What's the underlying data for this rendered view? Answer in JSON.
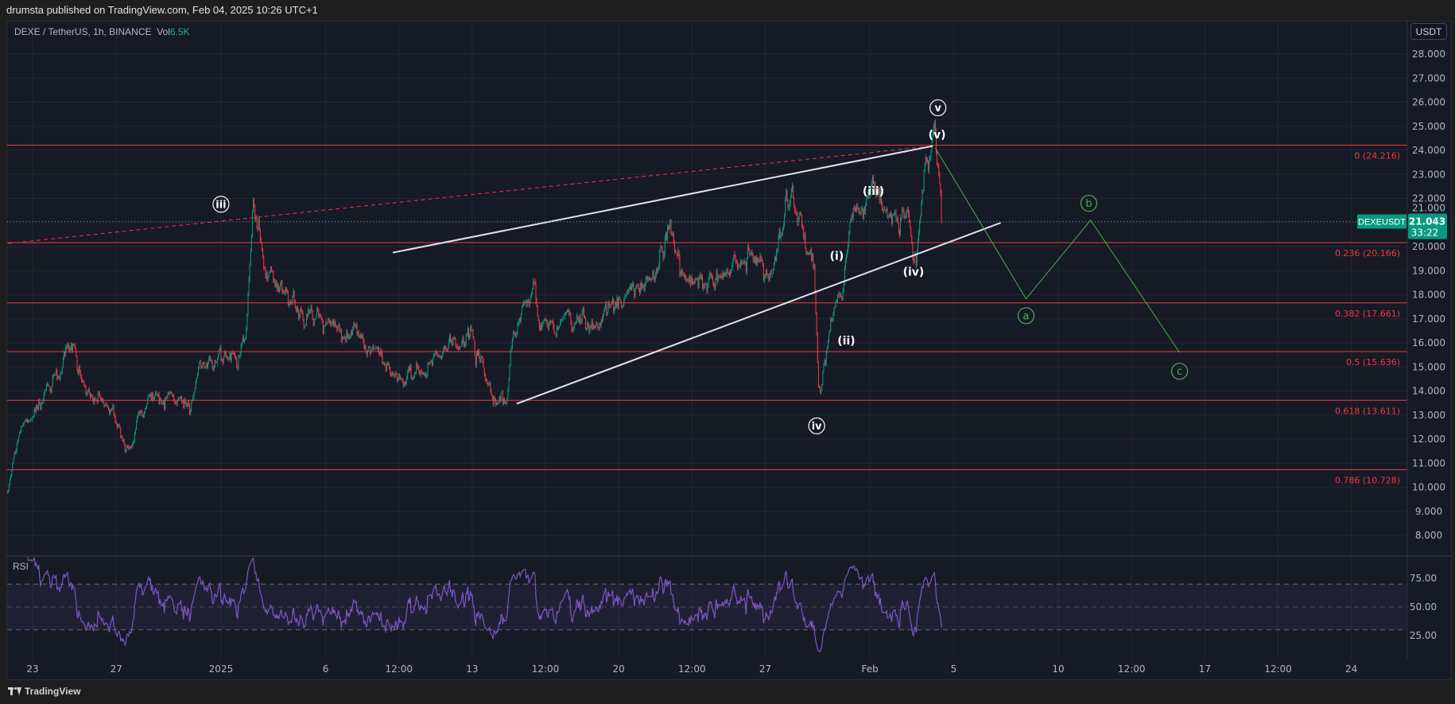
{
  "header": {
    "title": "drumsta published on TradingView.com, Feb 04, 2025 10:26 UTC+1"
  },
  "legend": {
    "symbol": "DEXE / TetherUS, 1h, BINANCE",
    "vol_label": "Vol",
    "vol_value": "6.5K"
  },
  "currency_button": "USDT",
  "rsi_label": "RSI",
  "footer": {
    "logo_text": "TradingView"
  },
  "colors": {
    "up": "#089981",
    "down": "#f23645",
    "fib": "#f23645",
    "rsi": "#7e57c2",
    "wave_green": "#4caf50",
    "price_badge": "#089981"
  },
  "chart_data": {
    "type": "candlestick",
    "symbol": "DEXEUSDT",
    "interval": "1h",
    "last_price": "21.043",
    "countdown": "33:22",
    "price_ticks": [
      "28.000",
      "27.000",
      "26.000",
      "25.000",
      "24.000",
      "23.000",
      "22.000",
      "21.000",
      "20.000",
      "19.000",
      "18.000",
      "17.000",
      "16.000",
      "15.000",
      "14.000",
      "13.000",
      "12.000",
      "11.000",
      "10.000",
      "9.000",
      "8.000"
    ],
    "ylim": [
      8,
      28
    ],
    "time_ticks": [
      {
        "label": "23",
        "t": "2024-12-23T00:00"
      },
      {
        "label": "27",
        "t": "2024-12-27T00:00"
      },
      {
        "label": "2025",
        "t": "2025-01-01T00:00"
      },
      {
        "label": "6",
        "t": "2025-01-06T00:00"
      },
      {
        "label": "12:00",
        "t": "2025-01-09T12:00"
      },
      {
        "label": "13",
        "t": "2025-01-13T00:00"
      },
      {
        "label": "12:00",
        "t": "2025-01-16T12:00"
      },
      {
        "label": "20",
        "t": "2025-01-20T00:00"
      },
      {
        "label": "12:00",
        "t": "2025-01-23T12:00"
      },
      {
        "label": "27",
        "t": "2025-01-27T00:00"
      },
      {
        "label": "Feb",
        "t": "2025-02-01T00:00"
      },
      {
        "label": "5",
        "t": "2025-02-05T00:00"
      },
      {
        "label": "10",
        "t": "2025-02-10T00:00"
      },
      {
        "label": "12:00",
        "t": "2025-02-13T12:00"
      },
      {
        "label": "17",
        "t": "2025-02-17T00:00"
      },
      {
        "label": "12:00",
        "t": "2025-02-20T12:00"
      },
      {
        "label": "24",
        "t": "2025-02-24T00:00"
      }
    ],
    "price_path": [
      [
        "2024-12-21T19:00",
        9.8
      ],
      [
        "2024-12-22T08:00",
        12.1
      ],
      [
        "2024-12-23T16:00",
        14.0
      ],
      [
        "2024-12-25T00:00",
        15.6
      ],
      [
        "2024-12-25T16:00",
        13.7
      ],
      [
        "2024-12-26T19:00",
        13.3
      ],
      [
        "2024-12-27T11:00",
        11.4
      ],
      [
        "2024-12-28T13:00",
        13.7
      ],
      [
        "2024-12-29T16:00",
        13.7
      ],
      [
        "2024-12-30T13:00",
        13.1
      ],
      [
        "2024-12-31T00:00",
        15.2
      ],
      [
        "2025-01-01T19:00",
        15.2
      ],
      [
        "2025-01-02T05:00",
        16.4
      ],
      [
        "2025-01-02T13:00",
        21.8
      ],
      [
        "2025-01-03T03:00",
        19.1
      ],
      [
        "2025-01-04T05:00",
        17.5
      ],
      [
        "2025-01-06T00:00",
        17.1
      ],
      [
        "2025-01-07T08:00",
        16.0
      ],
      [
        "2025-01-08T16:00",
        15.6
      ],
      [
        "2025-01-09T03:00",
        14.6
      ],
      [
        "2025-01-10T11:00",
        14.8
      ],
      [
        "2025-01-11T19:00",
        16.0
      ],
      [
        "2025-01-12T21:00",
        16.4
      ],
      [
        "2025-01-13T13:00",
        14.8
      ],
      [
        "2025-01-14T00:00",
        13.6
      ],
      [
        "2025-01-14T16:00",
        13.9
      ],
      [
        "2025-01-14T21:00",
        16.0
      ],
      [
        "2025-01-16T00:00",
        18.1
      ],
      [
        "2025-01-16T05:00",
        16.7
      ],
      [
        "2025-01-17T13:00",
        16.9
      ],
      [
        "2025-01-18T21:00",
        16.7
      ],
      [
        "2025-01-20T00:00",
        17.5
      ],
      [
        "2025-01-20T16:00",
        18.7
      ],
      [
        "2025-01-21T13:00",
        18.7
      ],
      [
        "2025-01-22T11:00",
        21.2
      ],
      [
        "2025-01-23T08:00",
        18.3
      ],
      [
        "2025-01-25T03:00",
        18.9
      ],
      [
        "2025-01-26T00:00",
        19.6
      ],
      [
        "2025-01-27T08:00",
        18.9
      ],
      [
        "2025-01-28T00:00",
        21.8
      ],
      [
        "2025-01-28T16:00",
        20.6
      ],
      [
        "2025-01-29T08:00",
        19.1
      ],
      [
        "2025-01-29T13:00",
        14.0
      ],
      [
        "2025-01-29T15:00",
        13.7
      ],
      [
        "2025-01-30T05:00",
        17.3
      ],
      [
        "2025-01-30T16:00",
        18.3
      ],
      [
        "2025-01-31T03:00",
        21.0
      ],
      [
        "2025-02-01T05:00",
        22.1
      ],
      [
        "2025-02-01T21:00",
        21.0
      ],
      [
        "2025-02-02T19:00",
        21.0
      ],
      [
        "2025-02-03T05:00",
        19.3
      ],
      [
        "2025-02-03T16:00",
        23.3
      ],
      [
        "2025-02-04T03:00",
        24.1
      ],
      [
        "2025-02-04T10:00",
        21.043
      ]
    ],
    "fib_levels": [
      {
        "label": "0 (24.216)",
        "price": 24.216
      },
      {
        "label": "0.236 (20.166)",
        "price": 20.166
      },
      {
        "label": "0.382 (17.661)",
        "price": 17.661
      },
      {
        "label": "0.5 (15.636)",
        "price": 15.636
      },
      {
        "label": "0.618 (13.611)",
        "price": 13.611
      },
      {
        "label": "0.786 (10.728)",
        "price": 10.728
      }
    ],
    "trendlines": [
      {
        "name": "dashed-resistance",
        "style": "dashed",
        "color": "#f23645",
        "from": [
          "2024-12-21T12:00",
          20.1
        ],
        "to": [
          "2025-02-04T00:00",
          24.18
        ]
      },
      {
        "name": "channel-upper",
        "style": "solid",
        "color": "#e0e3eb",
        "from": [
          "2025-01-09T05:00",
          19.75
        ],
        "to": [
          "2025-02-04T00:00",
          24.18
        ]
      },
      {
        "name": "channel-lower",
        "style": "solid",
        "color": "#e0e3eb",
        "from": [
          "2025-01-15T03:00",
          13.47
        ],
        "to": [
          "2025-02-07T06:00",
          20.99
        ]
      }
    ],
    "projection_path": [
      [
        "2025-02-04T03:00",
        24.1
      ],
      [
        "2025-02-08T11:00",
        17.83
      ],
      [
        "2025-02-11T13:00",
        21.1
      ],
      [
        "2025-02-15T19:00",
        15.6
      ]
    ],
    "wave_labels": [
      {
        "text": "iii",
        "circled": true,
        "color": "#ffffff",
        "t": "2025-01-01T00:00",
        "price": 21.76
      },
      {
        "text": "v",
        "circled": true,
        "color": "#ffffff",
        "t": "2025-02-04T06:00",
        "price": 25.77
      },
      {
        "text": "(v)",
        "circled": false,
        "color": "#ffffff",
        "t": "2025-02-04T05:00",
        "price": 24.65
      },
      {
        "text": "(iii)",
        "circled": false,
        "color": "#ffffff",
        "t": "2025-02-01T04:00",
        "price": 22.3
      },
      {
        "text": "(iv)",
        "circled": false,
        "color": "#ffffff",
        "t": "2025-02-03T02:00",
        "price": 18.94
      },
      {
        "text": "(i)",
        "circled": false,
        "color": "#ffffff",
        "t": "2025-01-30T10:00",
        "price": 19.6
      },
      {
        "text": "(ii)",
        "circled": false,
        "color": "#ffffff",
        "t": "2025-01-30T21:00",
        "price": 16.09
      },
      {
        "text": "iv",
        "circled": true,
        "color": "#ffffff",
        "t": "2025-01-29T11:00",
        "price": 12.55
      },
      {
        "text": "a",
        "circled": true,
        "color": "#4caf50",
        "t": "2025-02-08T11:00",
        "price": 17.13
      },
      {
        "text": "b",
        "circled": true,
        "color": "#4caf50",
        "t": "2025-02-11T11:00",
        "price": 21.8
      },
      {
        "text": "c",
        "circled": true,
        "color": "#4caf50",
        "t": "2025-02-15T19:00",
        "price": 14.82
      }
    ],
    "rsi": {
      "period": 14,
      "ticks": [
        "75.00",
        "50.00",
        "25.00"
      ],
      "bands": [
        70,
        50,
        30
      ],
      "ylim": [
        15,
        85
      ]
    }
  }
}
